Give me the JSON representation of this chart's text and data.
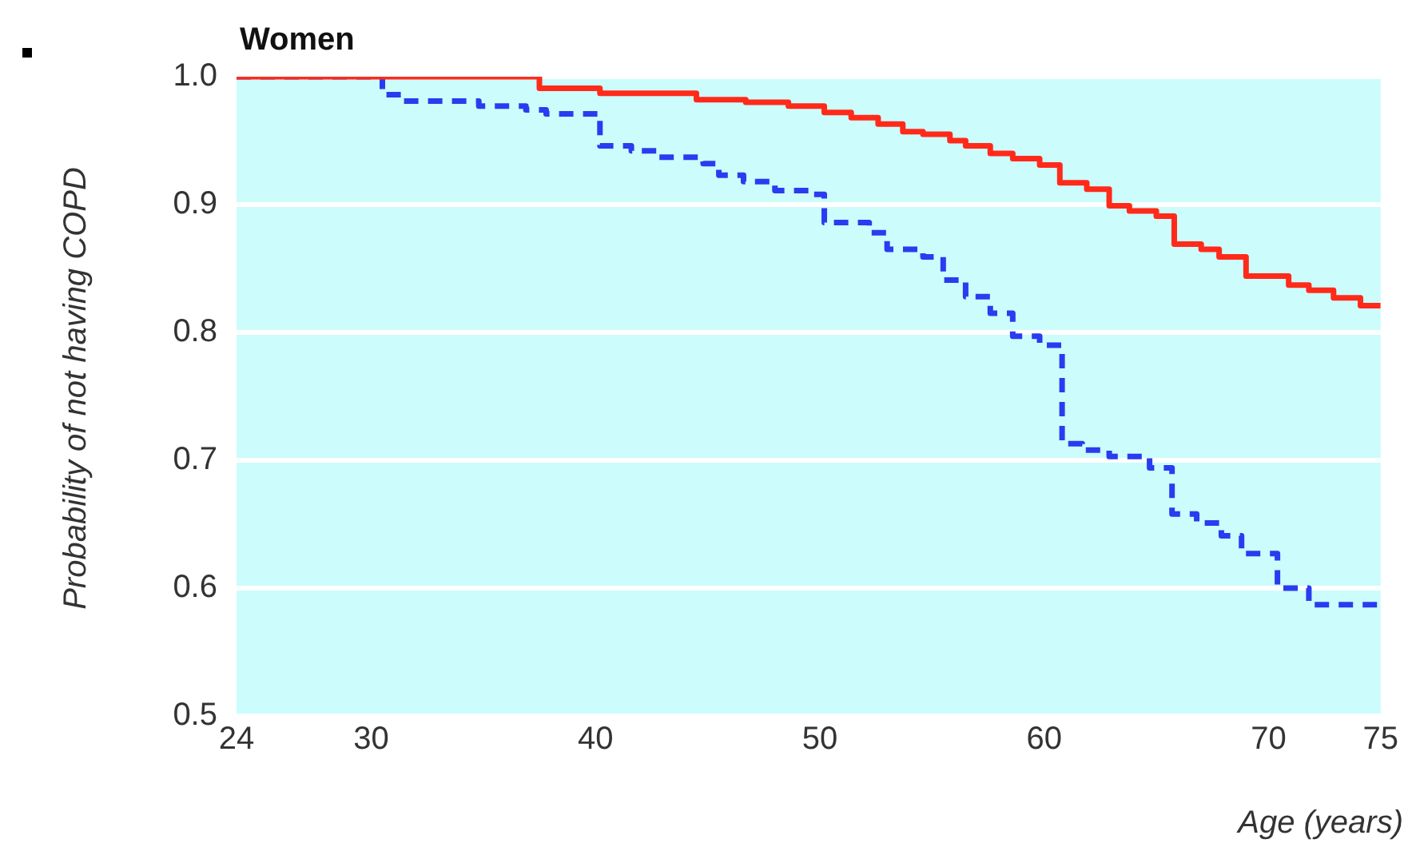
{
  "chart_data": {
    "type": "step",
    "title": "Women",
    "xlabel": "Age (years)",
    "ylabel": "Probability of not having COPD",
    "xlim": [
      24,
      75
    ],
    "ylim": [
      0.5,
      1.0
    ],
    "xticks": [
      24,
      30,
      40,
      50,
      60,
      70,
      75
    ],
    "yticks": [
      0.5,
      0.6,
      0.7,
      0.8,
      0.9,
      {
        "value": 1.0,
        "label": "1.0"
      }
    ],
    "grid": "y",
    "legend": false,
    "marker": "none",
    "series": [
      {
        "color": "#ff2a1a",
        "line_style": "solid",
        "x": [
          24,
          37.5,
          40.2,
          44.5,
          46.7,
          48.6,
          50.2,
          51.4,
          52.6,
          53.7,
          54.6,
          55.8,
          56.5,
          57.6,
          58.6,
          59.8,
          60.7,
          61.9,
          62.9,
          63.8,
          65,
          65.8,
          67,
          67.8,
          69,
          70.9,
          71.8,
          72.9,
          74.1,
          75
        ],
        "values": [
          1.0,
          0.991,
          0.987,
          0.982,
          0.98,
          0.977,
          0.972,
          0.968,
          0.963,
          0.957,
          0.955,
          0.95,
          0.946,
          0.94,
          0.936,
          0.931,
          0.917,
          0.912,
          0.899,
          0.895,
          0.891,
          0.869,
          0.865,
          0.859,
          0.844,
          0.837,
          0.833,
          0.827,
          0.821,
          0.821
        ]
      },
      {
        "color": "#2a3cf0",
        "line_style": "dashed",
        "x": [
          24,
          30.5,
          31.4,
          34.8,
          36.9,
          37.8,
          40.2,
          41.6,
          42.8,
          44.8,
          45.5,
          46.6,
          48,
          49.5,
          50.2,
          52.2,
          53,
          54.6,
          55.5,
          56.5,
          57.6,
          58.6,
          59.8,
          60.8,
          61.7,
          62.9,
          64.7,
          65.7,
          66.8,
          67.9,
          68.8,
          70.4,
          71.8,
          75
        ],
        "values": [
          1.0,
          0.986,
          0.981,
          0.977,
          0.974,
          0.971,
          0.946,
          0.942,
          0.937,
          0.932,
          0.923,
          0.918,
          0.911,
          0.908,
          0.886,
          0.878,
          0.865,
          0.859,
          0.841,
          0.828,
          0.815,
          0.797,
          0.79,
          0.713,
          0.708,
          0.703,
          0.694,
          0.658,
          0.651,
          0.641,
          0.627,
          0.6,
          0.587,
          0.587
        ]
      }
    ]
  }
}
